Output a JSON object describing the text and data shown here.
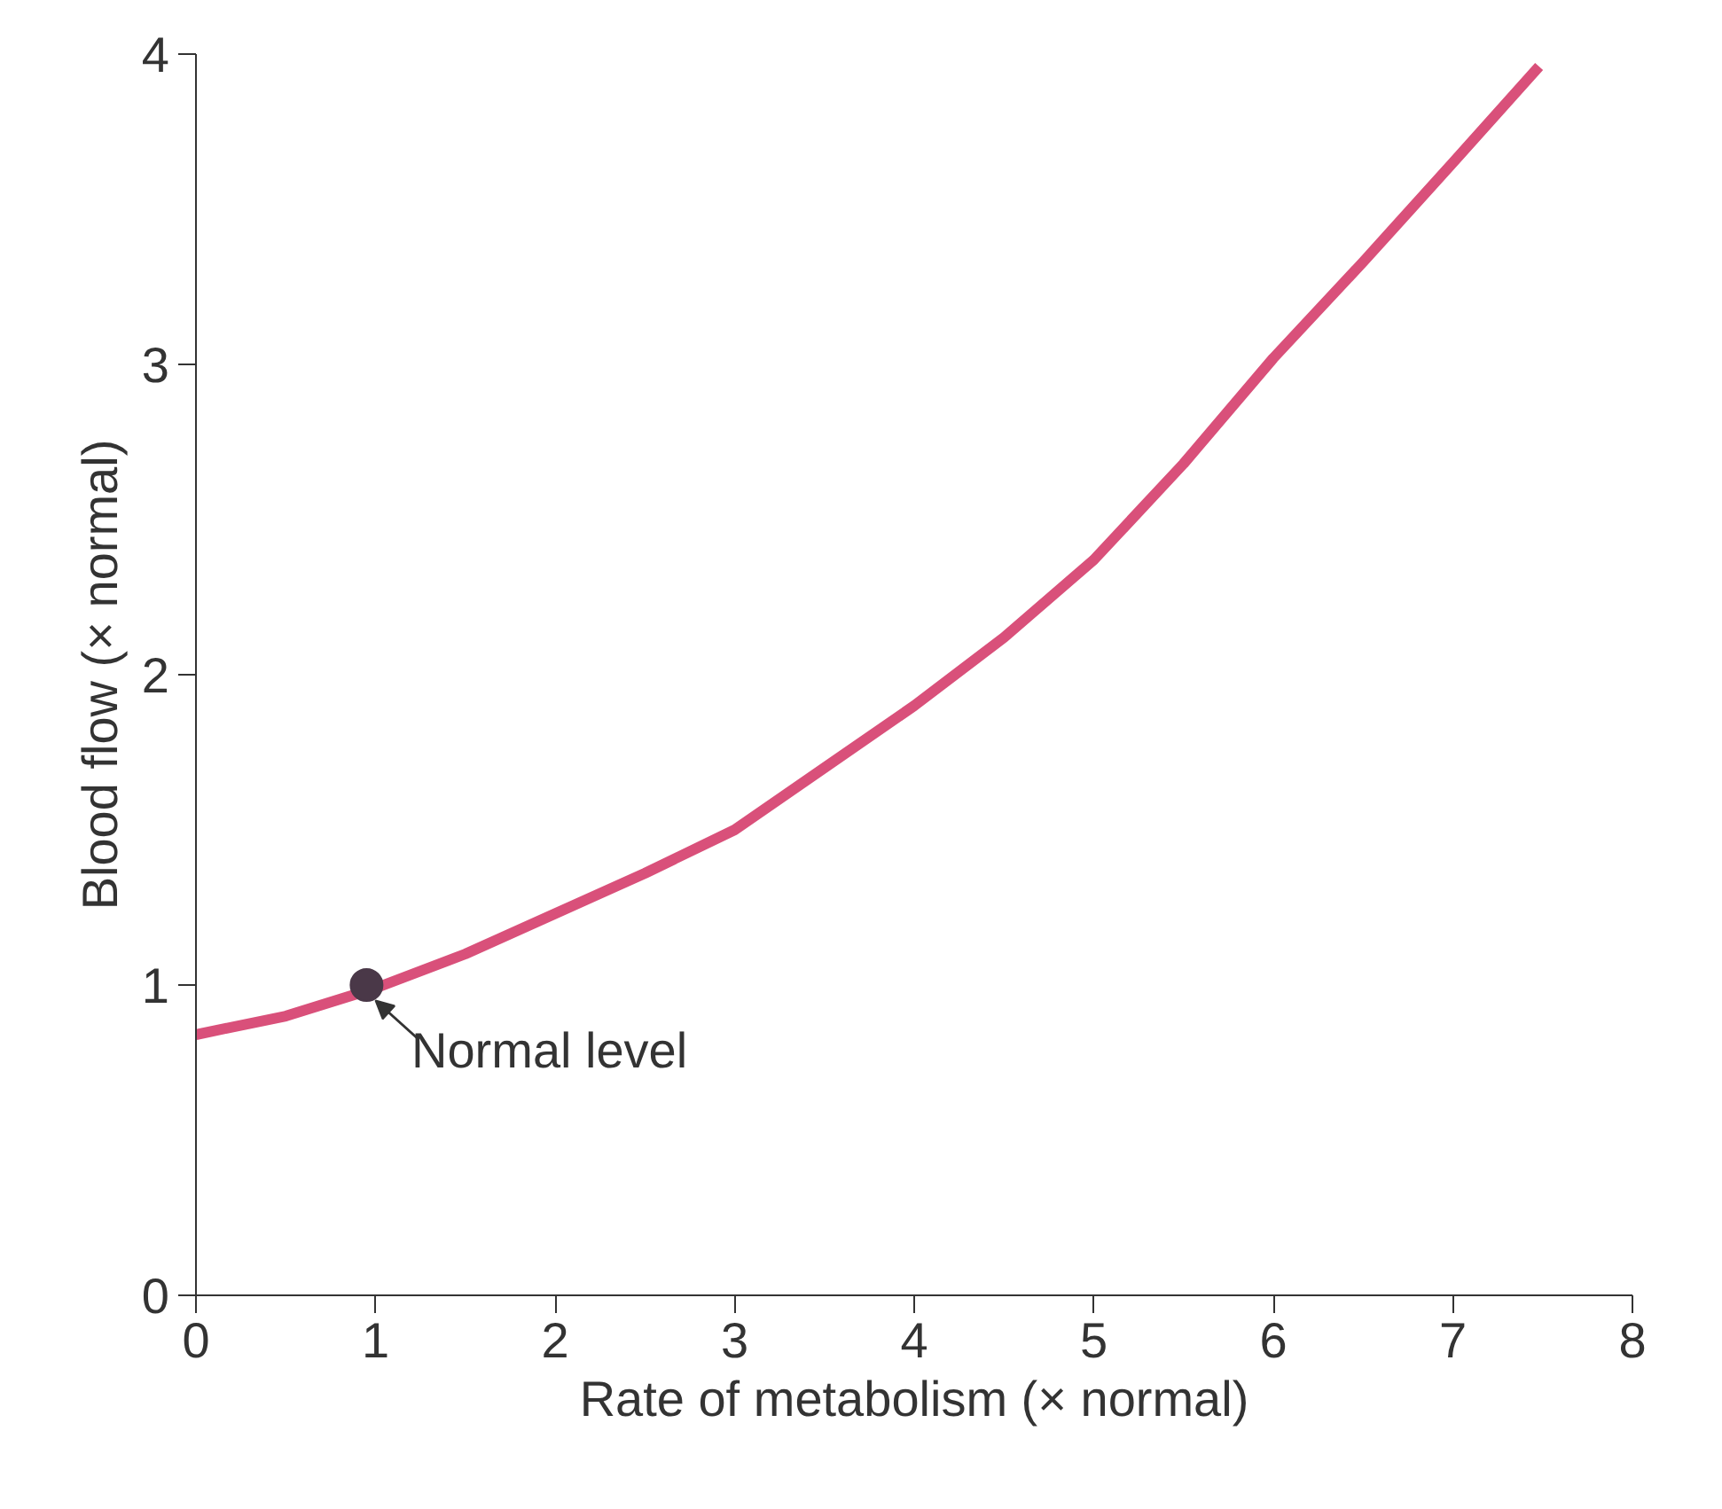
{
  "chart_data": {
    "type": "line",
    "xlabel": "Rate of metabolism (× normal)",
    "ylabel": "Blood flow (× normal)",
    "xlim": [
      0,
      8
    ],
    "ylim": [
      0,
      4
    ],
    "xticks": [
      0,
      1,
      2,
      3,
      4,
      5,
      6,
      7,
      8
    ],
    "yticks": [
      0,
      1,
      2,
      3,
      4
    ],
    "grid": false,
    "series": [
      {
        "color": "#d9507a",
        "x": [
          0,
          0.5,
          1,
          1.5,
          2,
          2.5,
          3,
          3.5,
          4,
          4.5,
          5,
          5.5,
          6,
          6.5,
          7,
          7.48
        ],
        "values": [
          0.84,
          0.9,
          0.99,
          1.1,
          1.23,
          1.36,
          1.5,
          1.7,
          1.9,
          2.12,
          2.37,
          2.68,
          3.02,
          3.33,
          3.65,
          3.96
        ]
      },
      {
        "type": "scatter",
        "color": "#4a3848",
        "marker": "circle",
        "x": [
          0.95
        ],
        "values": [
          1.0
        ]
      }
    ],
    "annotations": [
      {
        "text": "Normal level",
        "x": 0.95,
        "y": 1.0
      }
    ]
  }
}
